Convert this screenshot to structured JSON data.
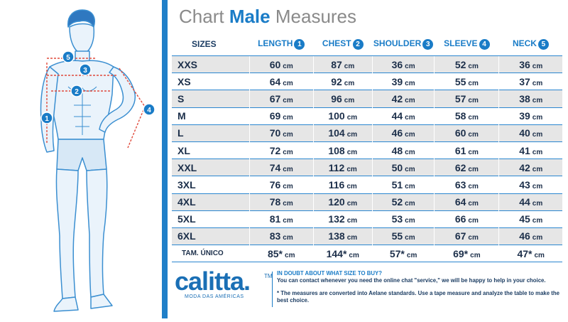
{
  "title": {
    "prefix": "Chart",
    "highlight": "Male",
    "suffix": "Measures"
  },
  "table": {
    "columns": [
      {
        "label": "SIZES",
        "marker": ""
      },
      {
        "label": "LENGTH",
        "marker": "1"
      },
      {
        "label": "CHEST",
        "marker": "2"
      },
      {
        "label": "SHOULDER",
        "marker": "3"
      },
      {
        "label": "SLEEVE",
        "marker": "4"
      },
      {
        "label": "NECK",
        "marker": "5"
      }
    ],
    "unit": "cm",
    "rows": [
      {
        "size": "XXS",
        "values": [
          "60",
          "87",
          "36",
          "52",
          "36"
        ]
      },
      {
        "size": "XS",
        "values": [
          "64",
          "92",
          "39",
          "55",
          "37"
        ]
      },
      {
        "size": "S",
        "values": [
          "67",
          "96",
          "42",
          "57",
          "38"
        ]
      },
      {
        "size": "M",
        "values": [
          "69",
          "100",
          "44",
          "58",
          "39"
        ]
      },
      {
        "size": "L",
        "values": [
          "70",
          "104",
          "46",
          "60",
          "40"
        ]
      },
      {
        "size": "XL",
        "values": [
          "72",
          "108",
          "48",
          "61",
          "41"
        ]
      },
      {
        "size": "XXL",
        "values": [
          "74",
          "112",
          "50",
          "62",
          "42"
        ]
      },
      {
        "size": "3XL",
        "values": [
          "76",
          "116",
          "51",
          "63",
          "43"
        ]
      },
      {
        "size": "4XL",
        "values": [
          "78",
          "120",
          "52",
          "64",
          "44"
        ]
      },
      {
        "size": "5XL",
        "values": [
          "81",
          "132",
          "53",
          "66",
          "45"
        ]
      },
      {
        "size": "6XL",
        "values": [
          "83",
          "138",
          "55",
          "67",
          "46"
        ]
      },
      {
        "size": "TAM. ÚNICO",
        "values": [
          "85*",
          "144*",
          "57*",
          "69*",
          "47*"
        ]
      }
    ]
  },
  "figure_markers": [
    "1",
    "2",
    "3",
    "4",
    "5"
  ],
  "brand": {
    "name": "calitta.",
    "tm": "TM",
    "tagline": "MODA DAS AMÉRICAS"
  },
  "footer": {
    "question": "IN DOUBT ABOUT WHAT SIZE TO BUY?",
    "contact": "You can contact whenever you need the online chat \"service,\" we will be happy to help in your choice.",
    "disclaimer": "* The measures are converted into Aelane standards. Use a tape measure and analyze the table to make the best choice."
  },
  "colors": {
    "accent": "#1a7cc7",
    "figure_line": "#3b8fd1",
    "measure_line": "#e04b3c",
    "row_shade": "#e6e6e6"
  }
}
